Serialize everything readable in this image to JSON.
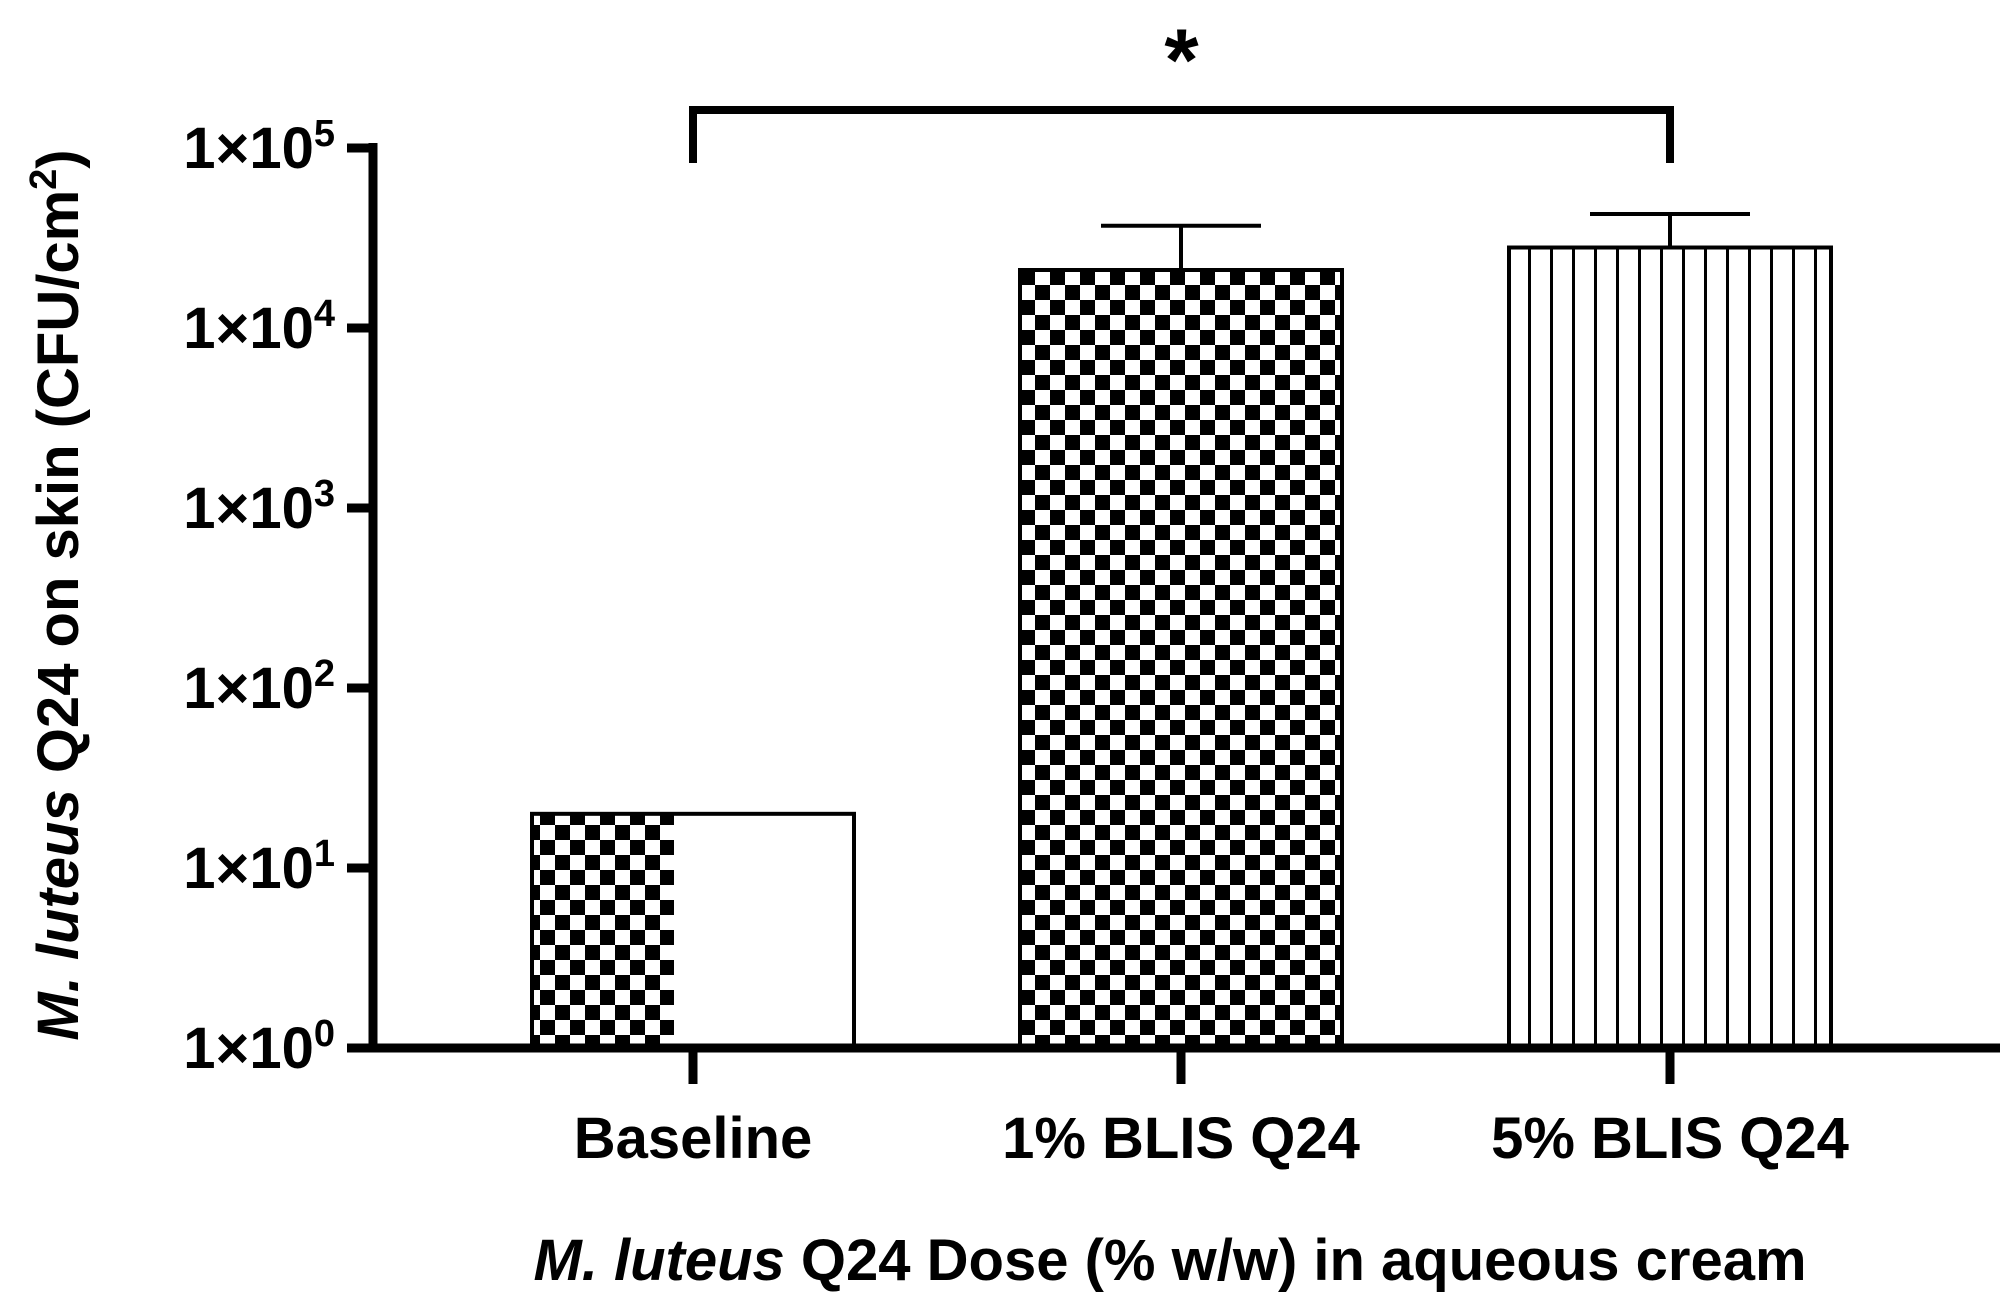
{
  "chart_data": {
    "type": "bar",
    "title": "",
    "xlabel_italic": "M. luteus",
    "xlabel_rest": " Q24 Dose (% w/w) in aqueous cream",
    "ylabel_italic": "M. luteus",
    "ylabel_rest": " Q24 on skin (CFU/cm",
    "ylabel_sup": "2",
    "ylabel_end": ")",
    "y_scale": "log10",
    "ylim": [
      1,
      100000
    ],
    "yticks": [
      {
        "base": "1×10",
        "exp": "0",
        "value": 1
      },
      {
        "base": "1×10",
        "exp": "1",
        "value": 10
      },
      {
        "base": "1×10",
        "exp": "2",
        "value": 100
      },
      {
        "base": "1×10",
        "exp": "3",
        "value": 1000
      },
      {
        "base": "1×10",
        "exp": "4",
        "value": 10000
      },
      {
        "base": "1×10",
        "exp": "5",
        "value": 100000
      }
    ],
    "categories": [
      "Baseline",
      "1% BLIS Q24",
      "5% BLIS Q24"
    ],
    "values": [
      20,
      21000,
      28000
    ],
    "error_upper": [
      null,
      37000,
      43000
    ],
    "fill_patterns": [
      "half-checker",
      "checker",
      "vertical-stripes"
    ],
    "significance": {
      "from": "Baseline",
      "to": "5% BLIS Q24",
      "label": "*"
    },
    "grid": false,
    "legend": "none",
    "colors": {
      "ink": "#000000",
      "background": "#ffffff"
    }
  }
}
